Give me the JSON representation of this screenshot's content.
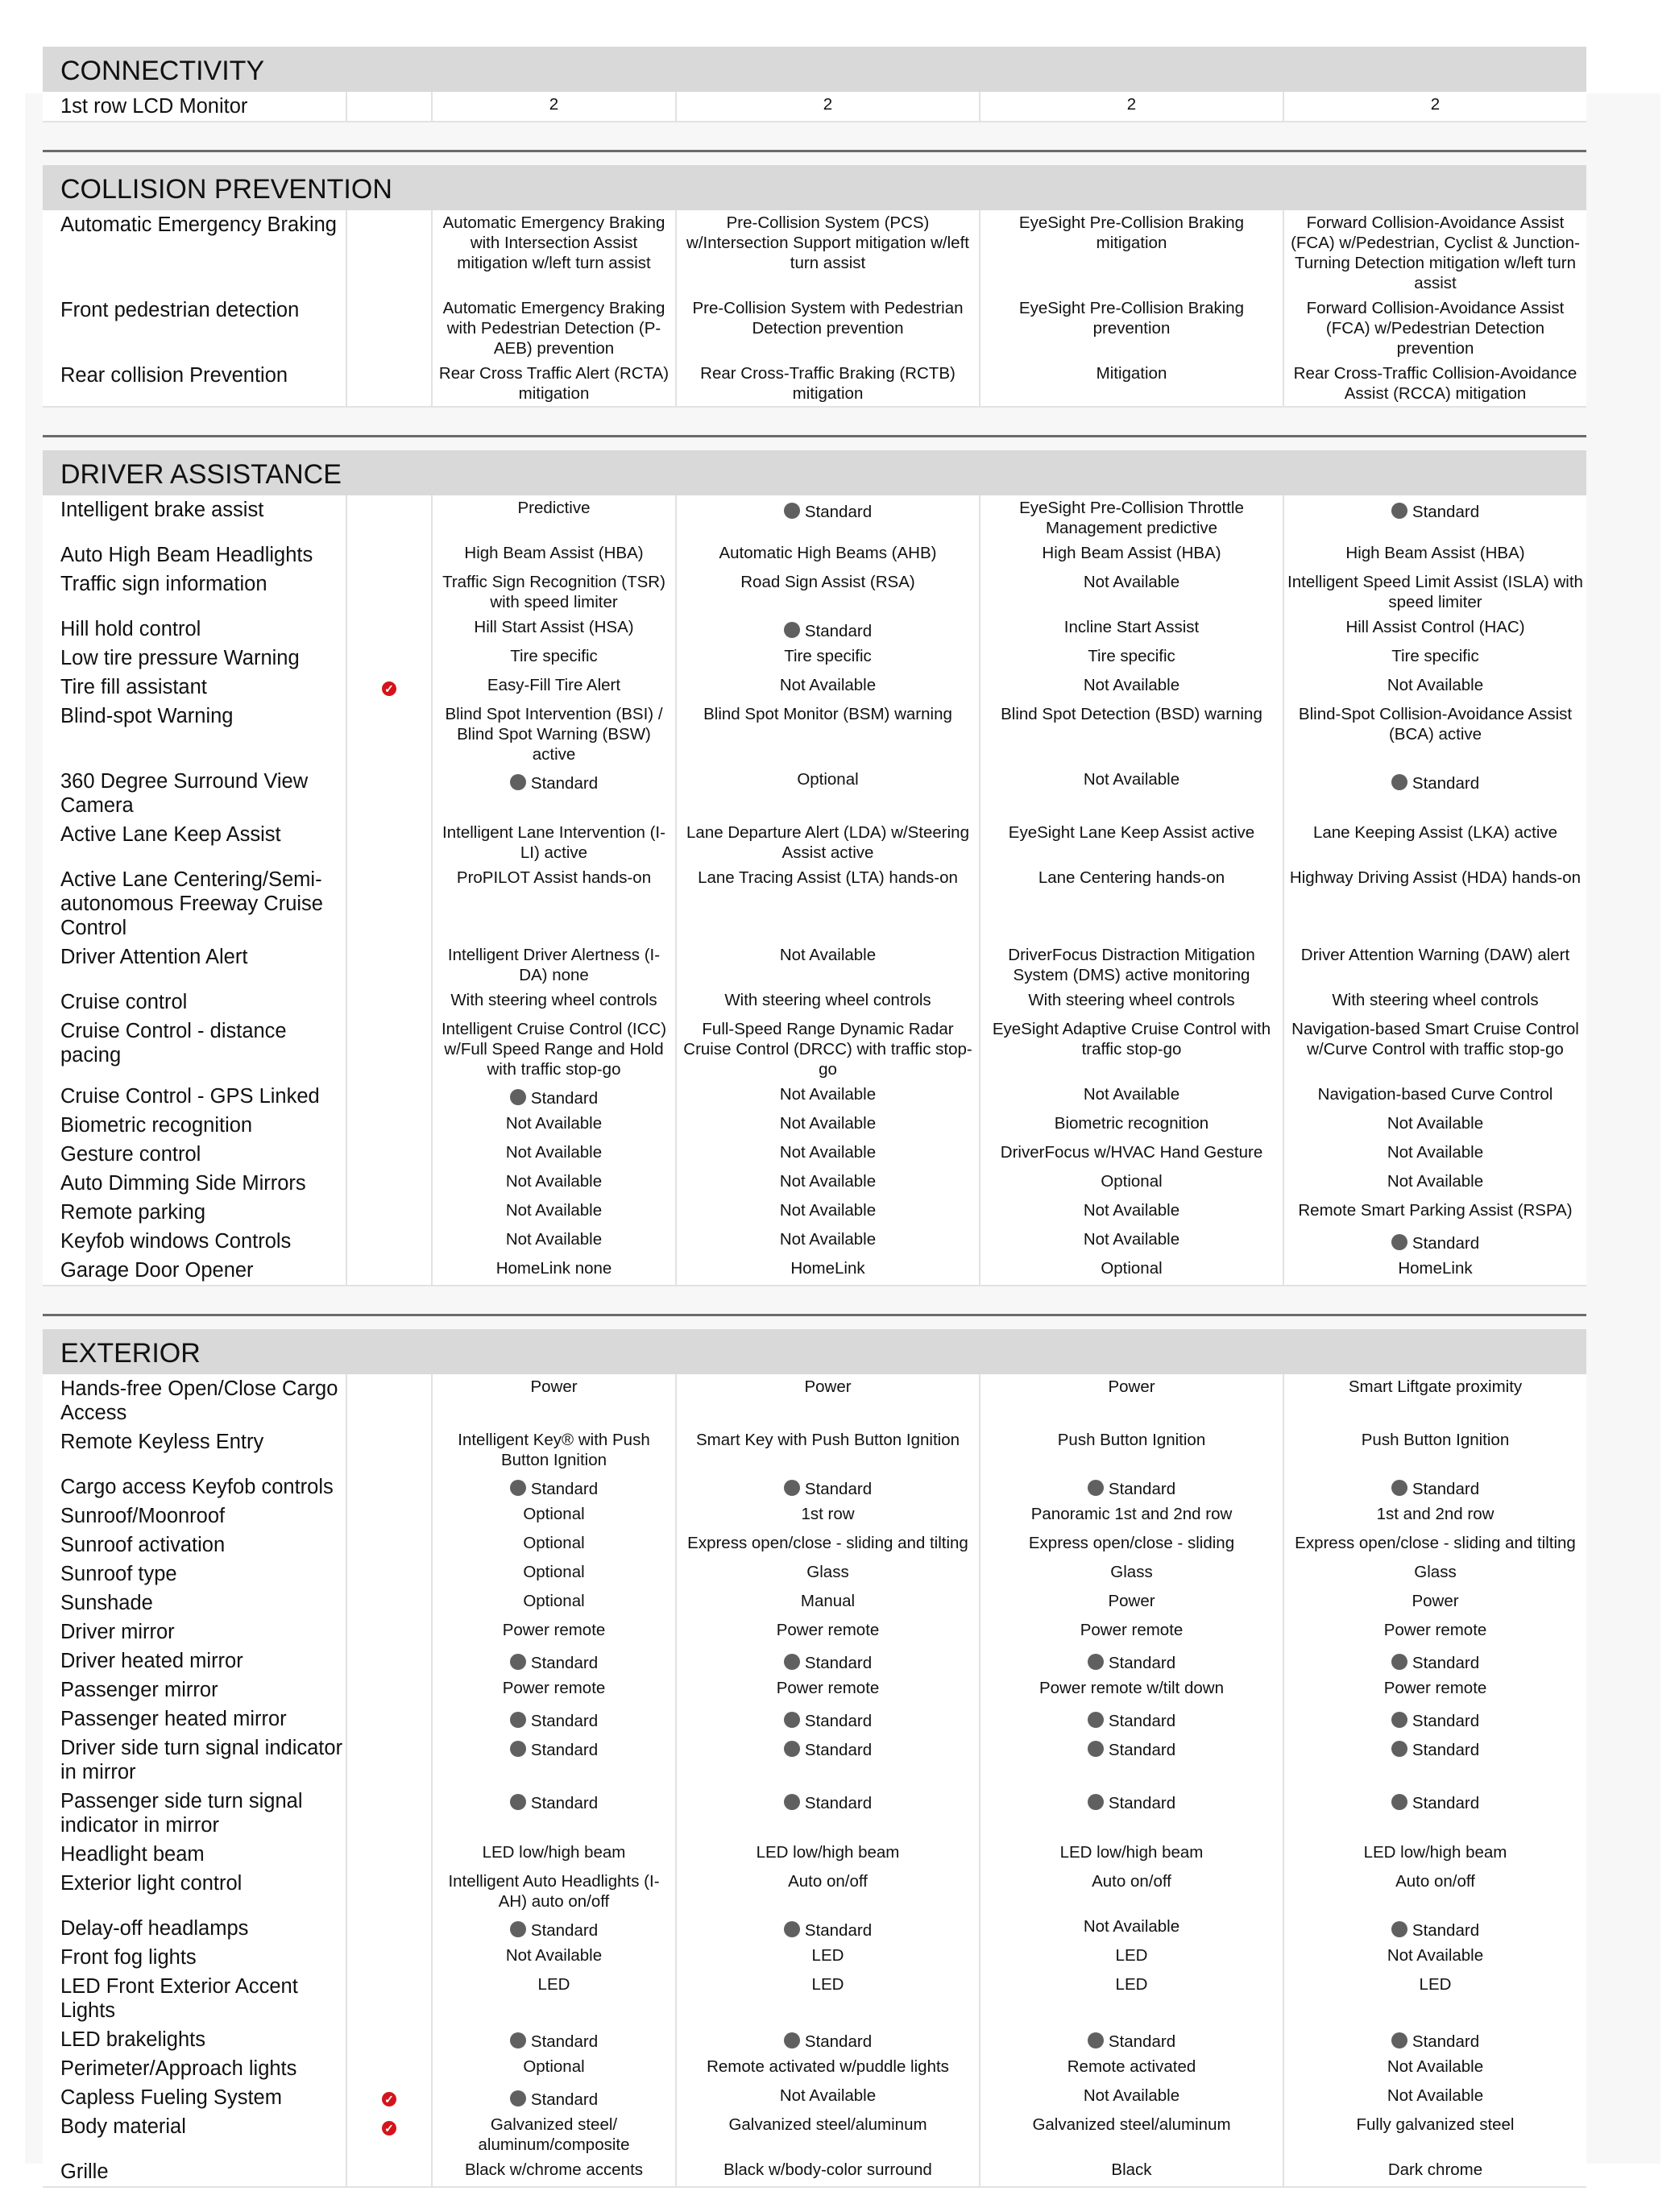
{
  "colors": {
    "header_bg": "#d9d9d9",
    "check": "#d4141b",
    "standard_dot": "#606060"
  },
  "icons": {
    "check": "red-checkmark-circle-icon",
    "standard": "filled-circle-icon"
  },
  "sections": [
    {
      "title": "CONNECTIVITY",
      "rows": [
        {
          "label": "1st row LCD Monitor",
          "check": false,
          "values": [
            "2",
            "2",
            "2",
            "2"
          ]
        }
      ]
    },
    {
      "title": "COLLISION PREVENTION",
      "rows": [
        {
          "label": "Automatic Emergency Braking",
          "check": false,
          "values": [
            "Automatic Emergency Braking with Intersection Assist mitigation w/left turn assist",
            "Pre-Collision System (PCS) w/Intersection Support mitigation w/left turn assist",
            "EyeSight Pre-Collision Braking mitigation",
            "Forward Collision-Avoidance Assist (FCA) w/Pedestrian, Cyclist & Junction-Turning Detection mitigation w/left turn assist"
          ]
        },
        {
          "label": "Front pedestrian detection",
          "check": false,
          "values": [
            "Automatic Emergency Braking with Pedestrian Detection (P-AEB) prevention",
            "Pre-Collision System with Pedestrian Detection prevention",
            "EyeSight Pre-Collision Braking prevention",
            "Forward Collision-Avoidance Assist (FCA) w/Pedestrian Detection prevention"
          ]
        },
        {
          "label": "Rear collision Prevention",
          "check": false,
          "values": [
            "Rear Cross Traffic Alert (RCTA) mitigation",
            "Rear Cross-Traffic Braking (RCTB) mitigation",
            "Mitigation",
            "Rear Cross-Traffic Collision-Avoidance Assist (RCCA) mitigation"
          ]
        }
      ]
    },
    {
      "title": "DRIVER ASSISTANCE",
      "rows": [
        {
          "label": "Intelligent brake assist",
          "check": false,
          "values": [
            "Predictive",
            "Standard",
            "EyeSight Pre-Collision Throttle Management predictive",
            "Standard"
          ]
        },
        {
          "label": "Auto High Beam Headlights",
          "check": false,
          "values": [
            "High Beam Assist (HBA)",
            "Automatic High Beams (AHB)",
            "High Beam Assist (HBA)",
            "High Beam Assist (HBA)"
          ]
        },
        {
          "label": "Traffic sign information",
          "check": false,
          "values": [
            "Traffic Sign Recognition (TSR) with speed limiter",
            "Road Sign Assist (RSA)",
            "Not Available",
            "Intelligent Speed Limit Assist (ISLA) with speed limiter"
          ]
        },
        {
          "label": "Hill hold control",
          "check": false,
          "values": [
            "Hill Start Assist (HSA)",
            "Standard",
            "Incline Start Assist",
            "Hill Assist Control (HAC)"
          ]
        },
        {
          "label": "Low tire pressure Warning",
          "check": false,
          "values": [
            "Tire specific",
            "Tire specific",
            "Tire specific",
            "Tire specific"
          ]
        },
        {
          "label": "Tire fill assistant",
          "check": true,
          "values": [
            "Easy-Fill Tire Alert",
            "Not Available",
            "Not Available",
            "Not Available"
          ]
        },
        {
          "label": "Blind-spot Warning",
          "check": false,
          "values": [
            "Blind Spot Intervention (BSI) / Blind Spot Warning (BSW) active",
            "Blind Spot Monitor (BSM) warning",
            "Blind Spot Detection (BSD) warning",
            "Blind-Spot Collision-Avoidance Assist (BCA) active"
          ]
        },
        {
          "label": "360 Degree Surround View Camera",
          "check": false,
          "values": [
            "Standard",
            "Optional",
            "Not Available",
            "Standard"
          ]
        },
        {
          "label": "Active Lane Keep Assist",
          "check": false,
          "values": [
            "Intelligent Lane Intervention (I-LI) active",
            "Lane Departure Alert (LDA) w/Steering Assist active",
            "EyeSight Lane Keep Assist active",
            "Lane Keeping Assist (LKA) active"
          ]
        },
        {
          "label": "Active Lane Centering/Semi-autonomous Freeway Cruise Control",
          "check": false,
          "values": [
            "ProPILOT Assist hands-on",
            "Lane Tracing Assist (LTA) hands-on",
            "Lane Centering hands-on",
            "Highway Driving Assist (HDA) hands-on"
          ]
        },
        {
          "label": "Driver Attention Alert",
          "check": false,
          "values": [
            "Intelligent Driver Alertness (I-DA) none",
            "Not Available",
            "DriverFocus Distraction Mitigation System (DMS) active monitoring",
            "Driver Attention Warning (DAW) alert"
          ]
        },
        {
          "label": "Cruise control",
          "check": false,
          "values": [
            "With steering wheel controls",
            "With steering wheel controls",
            "With steering wheel controls",
            "With steering wheel controls"
          ]
        },
        {
          "label": "Cruise Control - distance pacing",
          "check": false,
          "values": [
            "Intelligent Cruise Control (ICC) w/Full Speed Range and Hold with traffic stop-go",
            "Full-Speed Range Dynamic Radar Cruise Control (DRCC) with traffic stop-go",
            "EyeSight Adaptive Cruise Control with traffic stop-go",
            "Navigation-based Smart Cruise Control w/Curve Control with traffic stop-go"
          ]
        },
        {
          "label": "Cruise Control - GPS Linked",
          "check": false,
          "values": [
            "Standard",
            "Not Available",
            "Not Available",
            "Navigation-based Curve Control"
          ]
        },
        {
          "label": "Biometric recognition",
          "check": false,
          "values": [
            "Not Available",
            "Not Available",
            "Biometric recognition",
            "Not Available"
          ]
        },
        {
          "label": "Gesture control",
          "check": false,
          "values": [
            "Not Available",
            "Not Available",
            "DriverFocus w/HVAC Hand Gesture",
            "Not Available"
          ]
        },
        {
          "label": "Auto Dimming Side Mirrors",
          "check": false,
          "values": [
            "Not Available",
            "Not Available",
            "Optional",
            "Not Available"
          ]
        },
        {
          "label": "Remote parking",
          "check": false,
          "values": [
            "Not Available",
            "Not Available",
            "Not Available",
            "Remote Smart Parking Assist (RSPA)"
          ]
        },
        {
          "label": "Keyfob windows Controls",
          "check": false,
          "values": [
            "Not Available",
            "Not Available",
            "Not Available",
            "Standard"
          ]
        },
        {
          "label": "Garage Door Opener",
          "check": false,
          "values": [
            "HomeLink none",
            "HomeLink",
            "Optional",
            "HomeLink"
          ]
        }
      ]
    },
    {
      "title": "EXTERIOR",
      "rows": [
        {
          "label": "Hands-free Open/Close Cargo Access",
          "check": false,
          "values": [
            "Power",
            "Power",
            "Power",
            "Smart Liftgate proximity"
          ]
        },
        {
          "label": "Remote Keyless Entry",
          "check": false,
          "values": [
            "Intelligent Key® with Push Button Ignition",
            "Smart Key with Push Button Ignition",
            "Push Button Ignition",
            "Push Button Ignition"
          ]
        },
        {
          "label": "Cargo access Keyfob controls",
          "check": false,
          "values": [
            "Standard",
            "Standard",
            "Standard",
            "Standard"
          ]
        },
        {
          "label": "Sunroof/Moonroof",
          "check": false,
          "values": [
            "Optional",
            "1st row",
            "Panoramic 1st and 2nd row",
            "1st and 2nd row"
          ]
        },
        {
          "label": "Sunroof activation",
          "check": false,
          "values": [
            "Optional",
            "Express open/close - sliding and tilting",
            "Express open/close - sliding",
            "Express open/close - sliding and tilting"
          ]
        },
        {
          "label": "Sunroof type",
          "check": false,
          "values": [
            "Optional",
            "Glass",
            "Glass",
            "Glass"
          ]
        },
        {
          "label": "Sunshade",
          "check": false,
          "values": [
            "Optional",
            "Manual",
            "Power",
            "Power"
          ]
        },
        {
          "label": "Driver mirror",
          "check": false,
          "values": [
            "Power remote",
            "Power remote",
            "Power remote",
            "Power remote"
          ]
        },
        {
          "label": "Driver heated mirror",
          "check": false,
          "values": [
            "Standard",
            "Standard",
            "Standard",
            "Standard"
          ]
        },
        {
          "label": "Passenger mirror",
          "check": false,
          "values": [
            "Power remote",
            "Power remote",
            "Power remote w/tilt down",
            "Power remote"
          ]
        },
        {
          "label": "Passenger heated mirror",
          "check": false,
          "values": [
            "Standard",
            "Standard",
            "Standard",
            "Standard"
          ]
        },
        {
          "label": "Driver side turn signal indicator in mirror",
          "check": false,
          "values": [
            "Standard",
            "Standard",
            "Standard",
            "Standard"
          ]
        },
        {
          "label": "Passenger side turn signal indicator in mirror",
          "check": false,
          "values": [
            "Standard",
            "Standard",
            "Standard",
            "Standard"
          ]
        },
        {
          "label": "Headlight beam",
          "check": false,
          "values": [
            "LED low/high beam",
            "LED low/high beam",
            "LED low/high beam",
            "LED low/high beam"
          ]
        },
        {
          "label": "Exterior light control",
          "check": false,
          "values": [
            "Intelligent Auto Headlights (I-AH) auto on/off",
            "Auto on/off",
            "Auto on/off",
            "Auto on/off"
          ]
        },
        {
          "label": "Delay-off headlamps",
          "check": false,
          "values": [
            "Standard",
            "Standard",
            "Not Available",
            "Standard"
          ]
        },
        {
          "label": "Front fog lights",
          "check": false,
          "values": [
            "Not Available",
            "LED",
            "LED",
            "Not Available"
          ]
        },
        {
          "label": "LED Front Exterior Accent Lights",
          "check": false,
          "values": [
            "LED",
            "LED",
            "LED",
            "LED"
          ]
        },
        {
          "label": "LED brakelights",
          "check": false,
          "values": [
            "Standard",
            "Standard",
            "Standard",
            "Standard"
          ]
        },
        {
          "label": "Perimeter/Approach lights",
          "check": false,
          "values": [
            "Optional",
            "Remote activated w/puddle lights",
            "Remote activated",
            "Not Available"
          ]
        },
        {
          "label": "Capless Fueling System",
          "check": true,
          "values": [
            "Standard",
            "Not Available",
            "Not Available",
            "Not Available"
          ]
        },
        {
          "label": "Body material",
          "check": true,
          "values": [
            "Galvanized steel/ aluminum/composite",
            "Galvanized steel/aluminum",
            "Galvanized steel/aluminum",
            "Fully galvanized steel"
          ]
        },
        {
          "label": "Grille",
          "check": false,
          "values": [
            "Black w/chrome accents",
            "Black w/body-color surround",
            "Black",
            "Dark chrome"
          ]
        }
      ]
    }
  ]
}
